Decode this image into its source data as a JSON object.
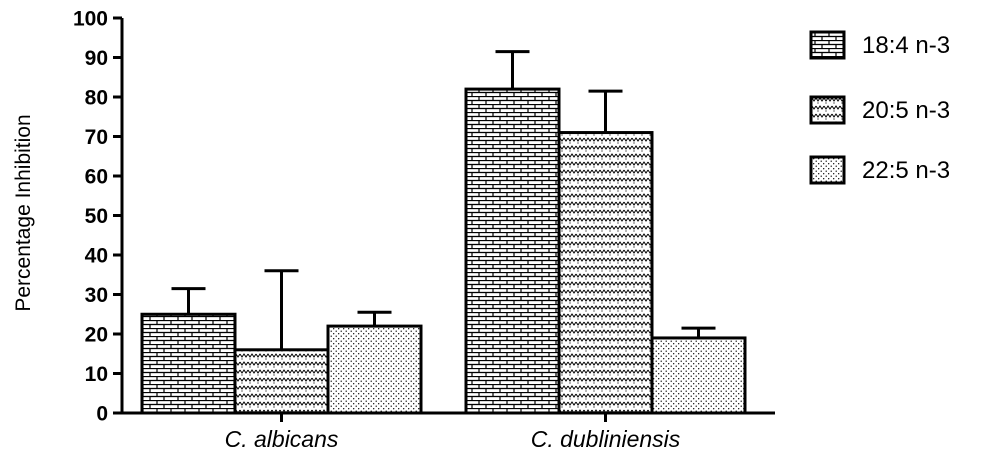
{
  "chart_data": {
    "type": "bar",
    "title": "",
    "xlabel": "",
    "ylabel": "Percentage Inhibition",
    "ylim": [
      0,
      100
    ],
    "yticks": [
      "0",
      "10",
      "20",
      "30",
      "40",
      "50",
      "60",
      "70",
      "80",
      "90",
      "100"
    ],
    "categories": [
      "C. albicans",
      "C. dubliniensis"
    ],
    "series": [
      {
        "name": "18:4 n-3",
        "values": [
          25,
          82
        ],
        "error": [
          6.5,
          9.5
        ],
        "pattern": "brick"
      },
      {
        "name": "20:5 n-3",
        "values": [
          16,
          71
        ],
        "error": [
          20,
          10.5
        ],
        "pattern": "zigzag"
      },
      {
        "name": "22:5 n-3",
        "values": [
          22,
          19
        ],
        "error": [
          3.5,
          2.5
        ],
        "pattern": "dots"
      }
    ],
    "error_bars": "upper",
    "grid": false,
    "legend_position": "top-right",
    "colors": {
      "bar_stroke": "#000000",
      "fill": "#ffffff",
      "pattern": "#000000"
    }
  }
}
